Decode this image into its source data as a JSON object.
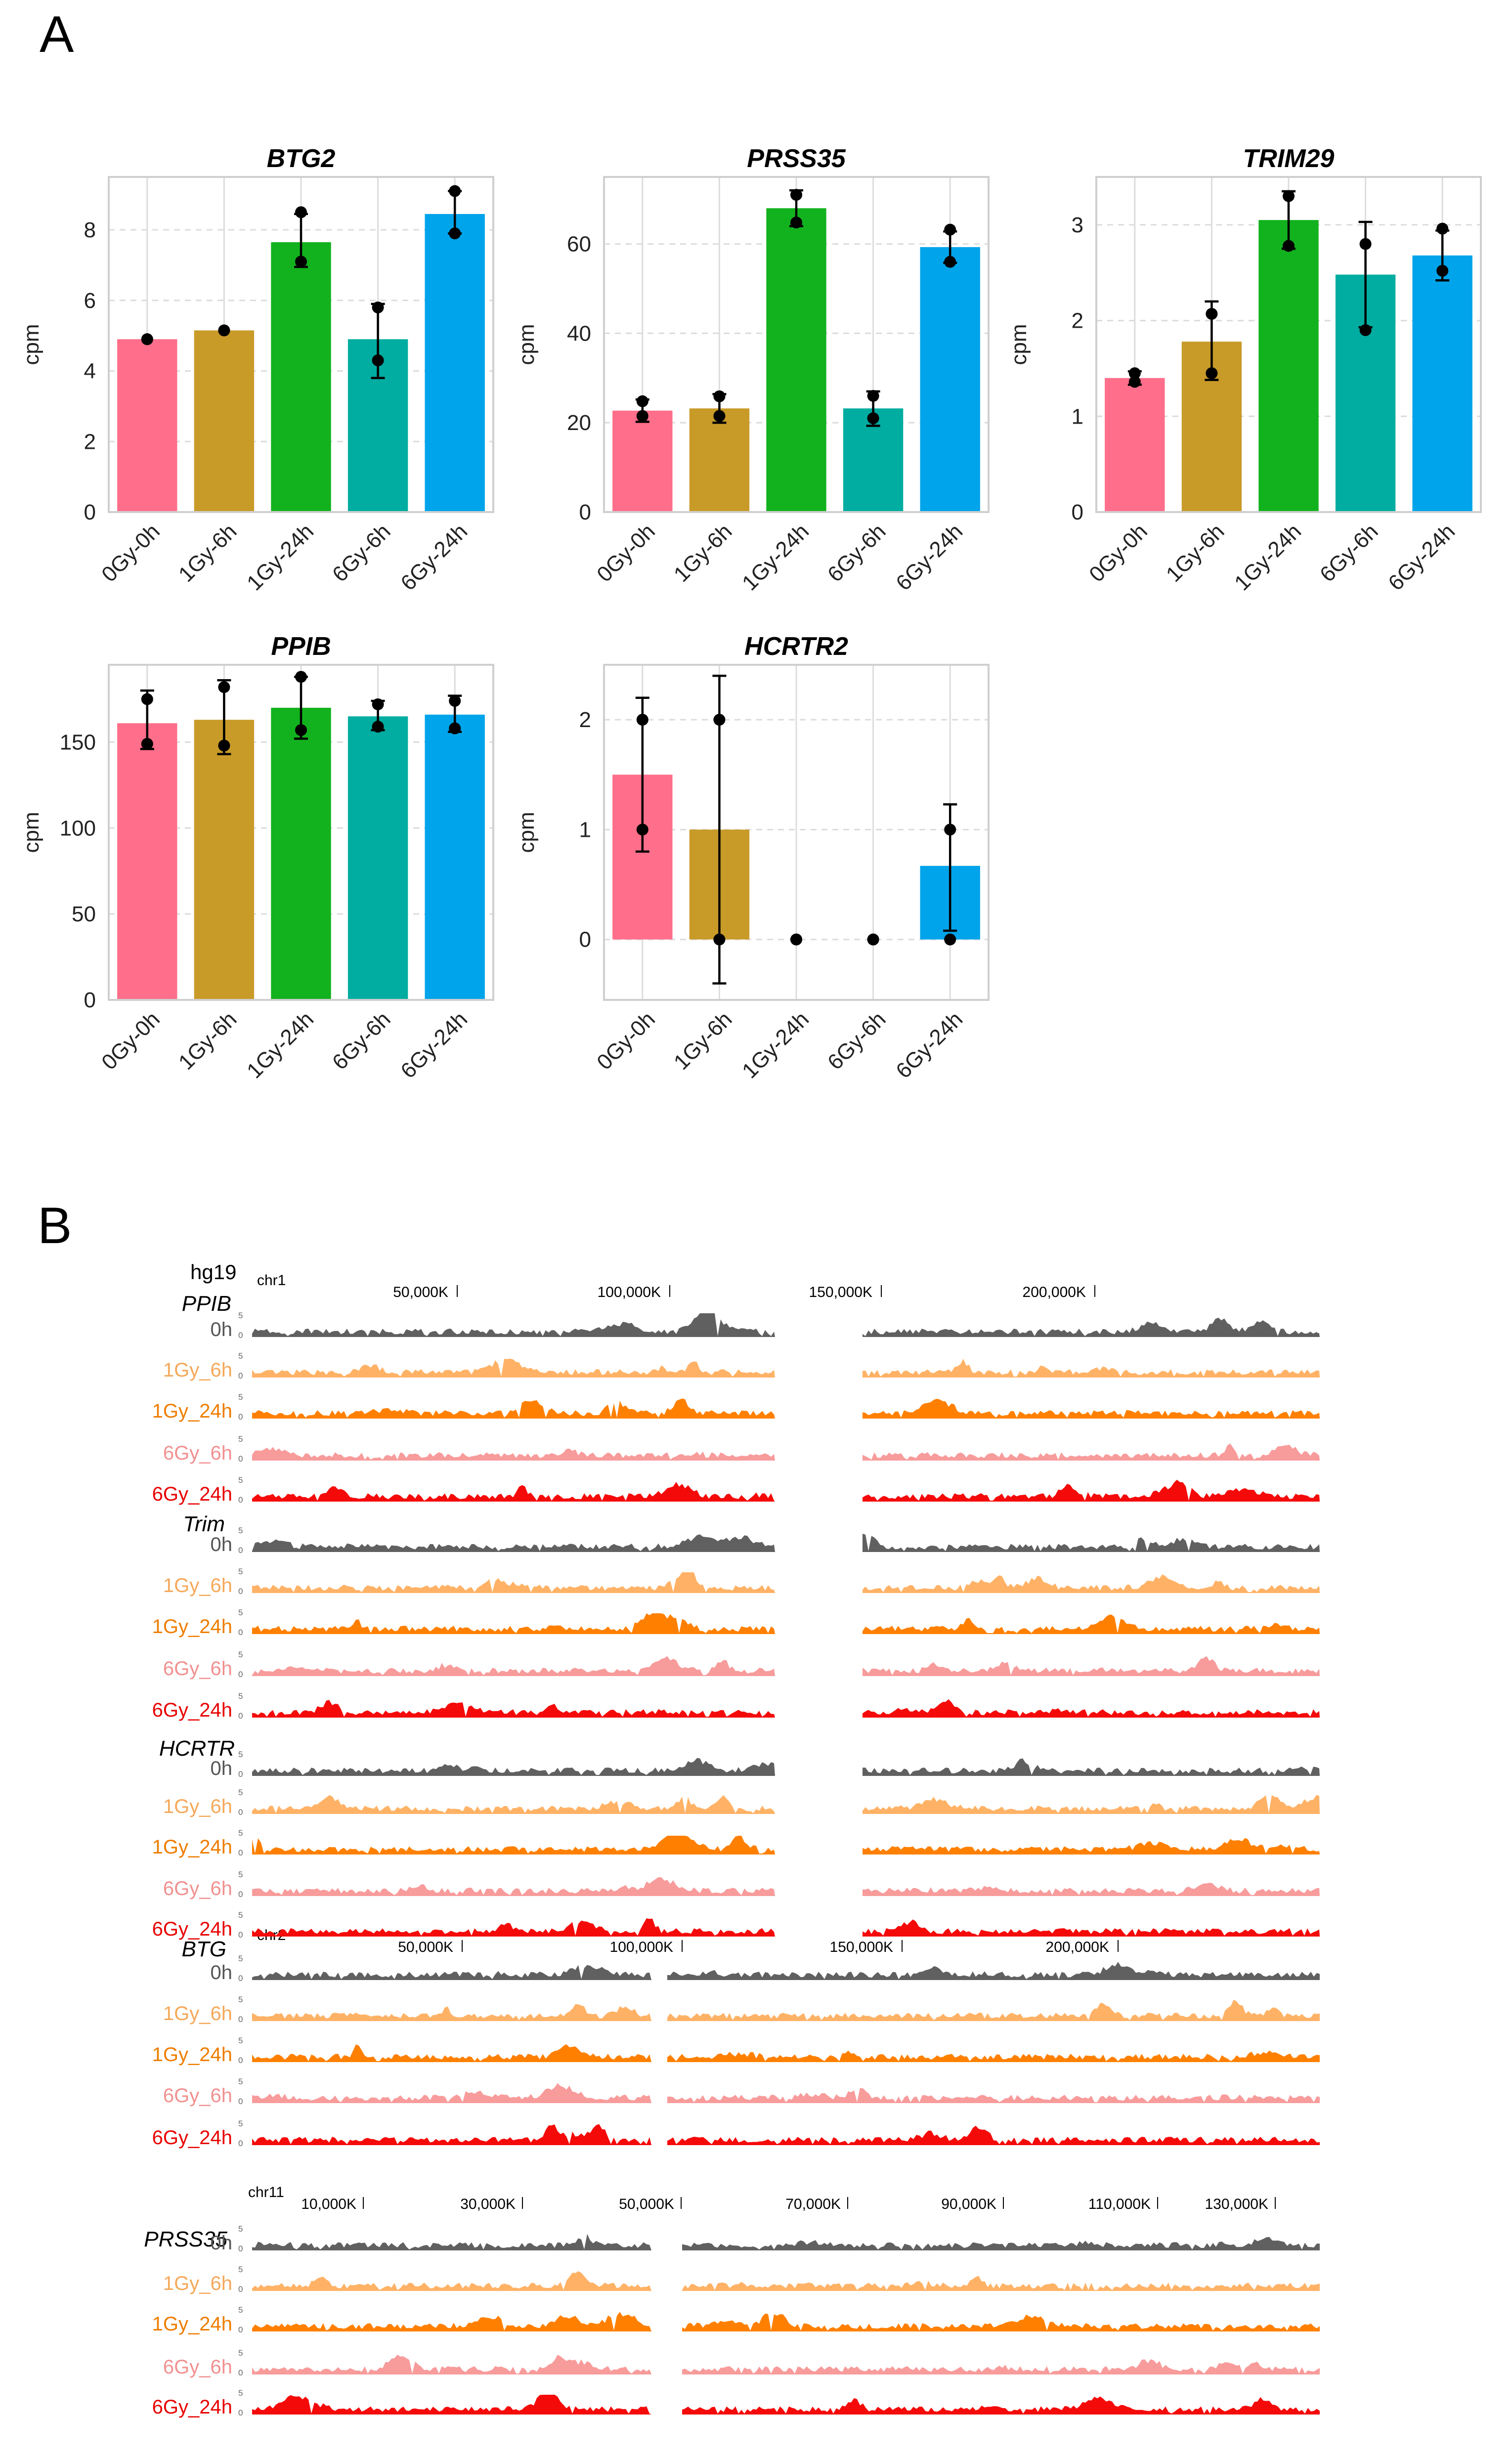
{
  "panels": {
    "a_label": "A",
    "b_label": "B"
  },
  "chart_data": [
    {
      "type": "bar",
      "title": "BTG2",
      "ylabel": "cpm",
      "xlabel": "",
      "categories": [
        "0Gy-0h",
        "1Gy-6h",
        "1Gy-24h",
        "6Gy-6h",
        "6Gy-24h"
      ],
      "values": [
        4.9,
        5.15,
        7.65,
        4.9,
        8.45
      ],
      "errors": [
        [
          4.9,
          4.9
        ],
        [
          5.15,
          5.15
        ],
        [
          6.95,
          8.45
        ],
        [
          3.8,
          5.9
        ],
        [
          7.9,
          9.1
        ]
      ],
      "points": [
        [
          4.9,
          4.9
        ],
        [
          5.15,
          5.15
        ],
        [
          8.5,
          7.1
        ],
        [
          5.8,
          4.3
        ],
        [
          9.1,
          7.9
        ]
      ],
      "ylim": [
        0,
        9.5
      ],
      "yticks": [
        0,
        2,
        4,
        6,
        8
      ]
    },
    {
      "type": "bar",
      "title": "PRSS35",
      "ylabel": "cpm",
      "xlabel": "",
      "categories": [
        "0Gy-0h",
        "1Gy-6h",
        "1Gy-24h",
        "6Gy-6h",
        "6Gy-24h"
      ],
      "values": [
        22.7,
        23.2,
        68.0,
        23.2,
        59.3
      ],
      "errors": [
        [
          20.2,
          25.2
        ],
        [
          20.0,
          26.4
        ],
        [
          64.0,
          72.0
        ],
        [
          19.3,
          27.0
        ],
        [
          55.8,
          62.8
        ]
      ],
      "points": [
        [
          24.8,
          21.5
        ],
        [
          25.9,
          21.5
        ],
        [
          71.0,
          64.8
        ],
        [
          26.0,
          21.0
        ],
        [
          63.2,
          56.0
        ]
      ],
      "ylim": [
        0,
        75
      ],
      "yticks": [
        0,
        20,
        40,
        60
      ]
    },
    {
      "type": "bar",
      "title": "TRIM29",
      "ylabel": "cpm",
      "xlabel": "",
      "categories": [
        "0Gy-0h",
        "1Gy-6h",
        "1Gy-24h",
        "6Gy-6h",
        "6Gy-24h"
      ],
      "values": [
        1.4,
        1.78,
        3.05,
        2.48,
        2.68
      ],
      "errors": [
        [
          1.33,
          1.47
        ],
        [
          1.38,
          2.2
        ],
        [
          2.75,
          3.35
        ],
        [
          1.93,
          3.03
        ],
        [
          2.42,
          2.94
        ]
      ],
      "points": [
        [
          1.45,
          1.36
        ],
        [
          2.07,
          1.45
        ],
        [
          3.3,
          2.78
        ],
        [
          2.8,
          1.9
        ],
        [
          2.96,
          2.52
        ]
      ],
      "ylim": [
        0,
        3.5
      ],
      "yticks": [
        0,
        1,
        2,
        3
      ]
    },
    {
      "type": "bar",
      "title": "PPIB",
      "ylabel": "cpm",
      "xlabel": "",
      "categories": [
        "0Gy-0h",
        "1Gy-6h",
        "1Gy-24h",
        "6Gy-6h",
        "6Gy-24h"
      ],
      "values": [
        161,
        163,
        170,
        165,
        166
      ],
      "errors": [
        [
          146,
          180
        ],
        [
          143,
          186
        ],
        [
          152,
          188
        ],
        [
          157,
          174
        ],
        [
          156,
          177
        ]
      ],
      "points": [
        [
          175,
          149
        ],
        [
          182,
          148
        ],
        [
          188,
          157
        ],
        [
          172,
          159
        ],
        [
          174,
          158
        ]
      ],
      "ylim": [
        0,
        195
      ],
      "yticks": [
        0,
        50,
        100,
        150
      ]
    },
    {
      "type": "bar",
      "title": "HCRTR2",
      "ylabel": "cpm",
      "xlabel": "",
      "categories": [
        "0Gy-0h",
        "1Gy-6h",
        "1Gy-24h",
        "6Gy-6h",
        "6Gy-24h"
      ],
      "values": [
        1.5,
        1.0,
        0,
        0,
        0.67
      ],
      "errors": [
        [
          0.8,
          2.2
        ],
        [
          -0.4,
          2.4
        ],
        [
          0,
          0
        ],
        [
          0,
          0
        ],
        [
          0.08,
          1.23
        ]
      ],
      "points": [
        [
          2,
          1
        ],
        [
          2,
          0
        ],
        [
          0,
          0
        ],
        [
          0,
          0
        ],
        [
          1,
          0
        ]
      ],
      "ylim": [
        -0.55,
        2.5
      ],
      "yticks": [
        0,
        1,
        2
      ]
    }
  ],
  "bar_colors": [
    "#ff6e8a",
    "#c89a28",
    "#12b21e",
    "#00ada0",
    "#00a4ea"
  ],
  "tracks": {
    "genome": "hg19",
    "max_label": "5",
    "min_label": "0",
    "chr1": {
      "name": "chr1",
      "ticks": [
        "50,000K",
        "100,000K",
        "150,000K",
        "200,000K"
      ]
    },
    "chr2": {
      "name": "chr2",
      "ticks": [
        "50,000K",
        "100,000K",
        "150,000K",
        "200,000K"
      ]
    },
    "chr11": {
      "name": "chr11",
      "ticks": [
        "10,000K",
        "30,000K",
        "50,000K",
        "70,000K",
        "90,000K",
        "110,000K",
        "130,000K"
      ]
    },
    "groups": [
      {
        "gene": "PPIB",
        "labels": [
          "0h",
          "1Gy_6h",
          "1Gy_24h",
          "6Gy_6h",
          "6Gy_24h"
        ]
      },
      {
        "gene": "Trim",
        "labels": [
          "0h",
          "1Gy_6h",
          "1Gy_24h",
          "6Gy_6h",
          "6Gy_24h"
        ]
      },
      {
        "gene": "HCRTR",
        "labels": [
          "0h",
          "1Gy_6h",
          "1Gy_24h",
          "6Gy_6h",
          "6Gy_24h"
        ]
      },
      {
        "gene": "BTG",
        "labels": [
          "0h",
          "1Gy_6h",
          "1Gy_24h",
          "6Gy_6h",
          "6Gy_24h"
        ]
      },
      {
        "gene": "PRSS35",
        "labels": [
          "0h",
          "1Gy_6h",
          "1Gy_24h",
          "6Gy_6h",
          "6Gy_24h"
        ]
      }
    ],
    "lane_colors": [
      "#606060",
      "#ffb266",
      "#ff8000",
      "#f89b9b",
      "#f50a0a"
    ],
    "lane_label_colors": [
      "#555555",
      "#f5a85a",
      "#ee7d00",
      "#f29090",
      "#e80000"
    ]
  }
}
